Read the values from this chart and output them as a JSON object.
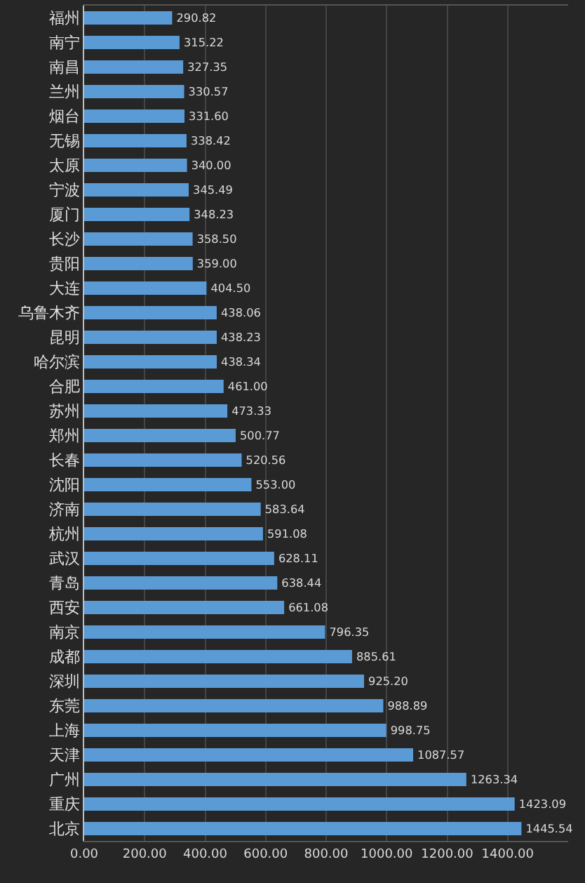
{
  "chart_data": {
    "type": "bar",
    "orientation": "horizontal",
    "categories": [
      "福州",
      "南宁",
      "南昌",
      "兰州",
      "烟台",
      "无锡",
      "太原",
      "宁波",
      "厦门",
      "长沙",
      "贵阳",
      "大连",
      "乌鲁木齐",
      "昆明",
      "哈尔滨",
      "合肥",
      "苏州",
      "郑州",
      "长春",
      "沈阳",
      "济南",
      "杭州",
      "武汉",
      "青岛",
      "西安",
      "南京",
      "成都",
      "深圳",
      "东莞",
      "上海",
      "天津",
      "广州",
      "重庆",
      "北京"
    ],
    "values": [
      290.82,
      315.22,
      327.35,
      330.57,
      331.6,
      338.42,
      340.0,
      345.49,
      348.23,
      358.5,
      359.0,
      404.5,
      438.06,
      438.23,
      438.34,
      461.0,
      473.33,
      500.77,
      520.56,
      553.0,
      583.64,
      591.08,
      628.11,
      638.44,
      661.08,
      796.35,
      885.61,
      925.2,
      988.89,
      998.75,
      1087.57,
      1263.34,
      1423.09,
      1445.54
    ],
    "value_labels": [
      "290.82",
      "315.22",
      "327.35",
      "330.57",
      "331.60",
      "338.42",
      "340.00",
      "345.49",
      "348.23",
      "358.50",
      "359.00",
      "404.50",
      "438.06",
      "438.23",
      "438.34",
      "461.00",
      "473.33",
      "500.77",
      "520.56",
      "553.00",
      "583.64",
      "591.08",
      "628.11",
      "638.44",
      "661.08",
      "796.35",
      "885.61",
      "925.20",
      "988.89",
      "998.75",
      "1087.57",
      "1263.34",
      "1423.09",
      "1445.54"
    ],
    "color": "#5b9bd5",
    "xlim": [
      0,
      1600
    ],
    "xticks": [
      {
        "value": 0,
        "label": "0.00"
      },
      {
        "value": 200,
        "label": "200.00"
      },
      {
        "value": 400,
        "label": "400.00"
      },
      {
        "value": 600,
        "label": "600.00"
      },
      {
        "value": 800,
        "label": "800.00"
      },
      {
        "value": 1000,
        "label": "1000.00"
      },
      {
        "value": 1200,
        "label": "1200.00"
      },
      {
        "value": 1400,
        "label": "1400.00"
      }
    ],
    "grid": "x"
  }
}
